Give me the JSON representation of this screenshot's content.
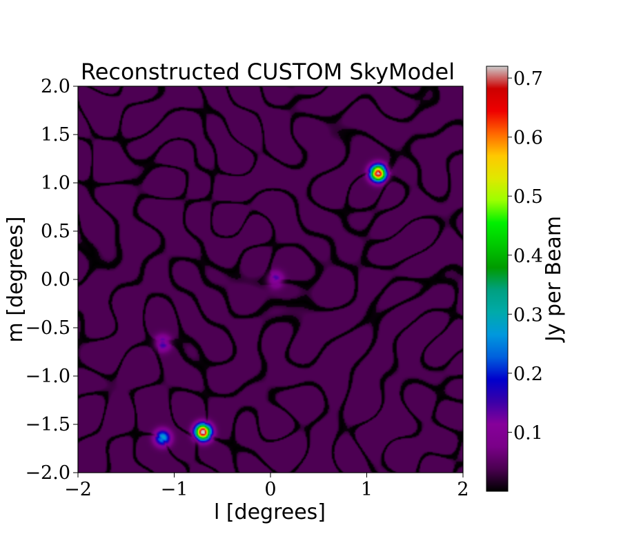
{
  "chart_data": {
    "type": "heatmap",
    "title": "Reconstructed CUSTOM SkyModel",
    "xlabel": "l [degrees]",
    "ylabel": "m [degrees]",
    "xlim": [
      -2,
      2
    ],
    "ylim": [
      -2,
      2
    ],
    "x_ticks": [
      -2,
      -1,
      0,
      1,
      2
    ],
    "x_tick_labels": [
      "−2",
      "−1",
      "0",
      "1",
      "2"
    ],
    "y_ticks": [
      2.0,
      1.5,
      1.0,
      0.5,
      0.0,
      -0.5,
      -1.0,
      -1.5,
      -2.0
    ],
    "y_tick_labels": [
      "2.0",
      "1.5",
      "1.0",
      "0.5",
      "0.0",
      "−0.5",
      "−1.0",
      "−1.5",
      "−2.0"
    ],
    "colorbar": {
      "label": "Jy per Beam",
      "range": [
        0.0,
        0.72
      ],
      "ticks": [
        0.1,
        0.2,
        0.3,
        0.4,
        0.5,
        0.6,
        0.7
      ],
      "tick_labels": [
        "0.1",
        "0.2",
        "0.3",
        "0.4",
        "0.5",
        "0.6",
        "0.7"
      ],
      "colormap": "nipy_spectral",
      "colormap_stops": [
        "#000000",
        "#4a0050",
        "#7a0088",
        "#86009a",
        "#3a00a8",
        "#0000cc",
        "#0060dd",
        "#0098dd",
        "#00aaaa",
        "#00a080",
        "#009b00",
        "#00c800",
        "#00f000",
        "#9cff00",
        "#e0e800",
        "#ffc800",
        "#ff6600",
        "#ee0000",
        "#cc0000",
        "#cccccc"
      ]
    },
    "sources": [
      {
        "l": 1.12,
        "m": 1.1,
        "peak": 0.7
      },
      {
        "l": -0.7,
        "m": -1.58,
        "peak": 0.72
      },
      {
        "l": -1.12,
        "m": -1.64,
        "peak": 0.25
      },
      {
        "l": -1.12,
        "m": -0.66,
        "peak": 0.13
      },
      {
        "l": 0.05,
        "m": 0.0,
        "peak": 0.12
      }
    ],
    "background_level": 0.04
  }
}
